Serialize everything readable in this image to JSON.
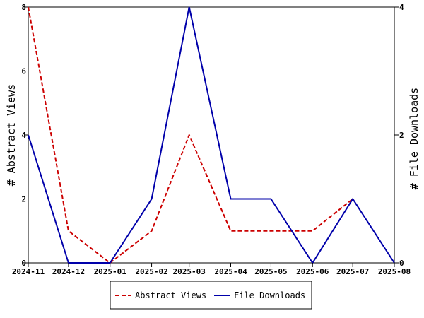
{
  "chart_data": {
    "type": "line",
    "x": [
      "2024-11",
      "2024-12",
      "2025-01",
      "2025-02",
      "2025-03",
      "2025-04",
      "2025-05",
      "2025-06",
      "2025-07",
      "2025-08"
    ],
    "x_positions": [
      0,
      30,
      61,
      92,
      120,
      151,
      181,
      212,
      242,
      273
    ],
    "series": [
      {
        "name": "Abstract Views",
        "axis": "left",
        "color": "#cc0000",
        "dash": "dashed",
        "x": [
          "2024-11",
          "2024-12",
          "2025-01",
          "2025-02",
          "2025-03",
          "2025-04",
          "2025-05",
          "2025-06",
          "2025-07"
        ],
        "values": [
          8,
          1,
          0,
          1,
          4,
          1,
          1,
          1,
          2
        ]
      },
      {
        "name": "File Downloads",
        "axis": "right",
        "color": "#0000aa",
        "dash": "solid",
        "x": [
          "2024-11",
          "2024-12",
          "2025-01",
          "2025-02",
          "2025-03",
          "2025-04",
          "2025-05",
          "2025-06",
          "2025-07",
          "2025-08"
        ],
        "values": [
          2,
          0,
          0,
          1,
          4,
          1,
          1,
          0,
          1,
          0
        ]
      }
    ],
    "ylabel_left": "# Abstract Views",
    "ylabel_right": "# File Downloads",
    "ylim_left": [
      0,
      8
    ],
    "ylim_right": [
      0,
      4
    ],
    "yticks_left": [
      "0",
      "2",
      "4",
      "6",
      "8"
    ],
    "yticks_right": [
      "0",
      "2",
      "4"
    ],
    "grid": false,
    "legend_position": "bottom"
  }
}
